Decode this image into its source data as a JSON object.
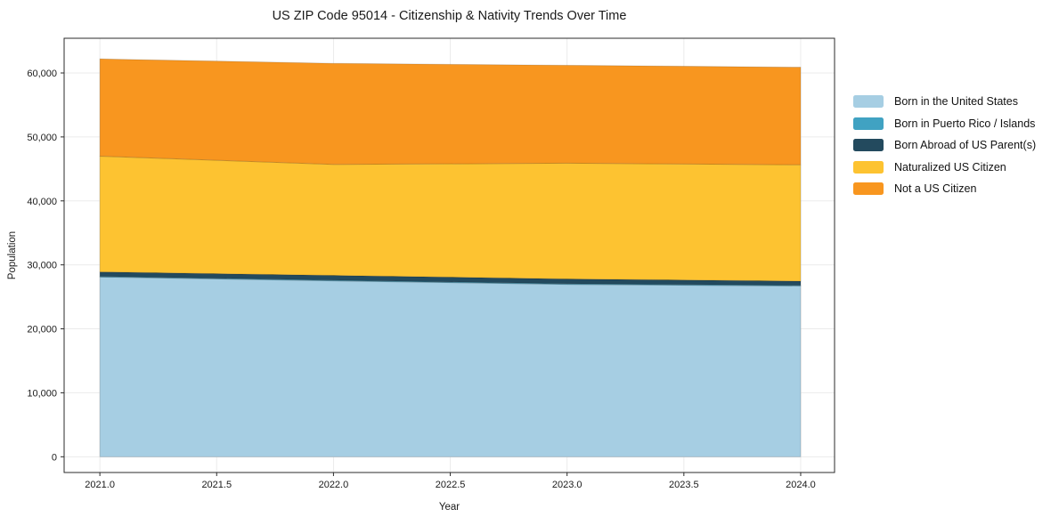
{
  "page": {
    "background": "#ffffff"
  },
  "chart_data": {
    "type": "area",
    "stacked": true,
    "title": "US ZIP Code 95014 - Citizenship & Nativity Trends Over Time",
    "xlabel": "Year",
    "ylabel": "Population",
    "x": [
      2021,
      2022,
      2023,
      2024
    ],
    "series": [
      {
        "name": "Born in the United States",
        "color": "#a6cee3",
        "values": [
          28100,
          27500,
          26950,
          26700
        ]
      },
      {
        "name": "Born in Puerto Rico / Islands",
        "color": "#40a2c2",
        "values": [
          100,
          100,
          100,
          100
        ]
      },
      {
        "name": "Born Abroad of US Parent(s)",
        "color": "#234a5e",
        "values": [
          700,
          750,
          750,
          650
        ]
      },
      {
        "name": "Naturalized US Citizen",
        "color": "#fdc331",
        "values": [
          18100,
          17350,
          18100,
          18200
        ]
      },
      {
        "name": "Not a US Citizen",
        "color": "#f8961f",
        "values": [
          15200,
          15800,
          15300,
          15250
        ]
      }
    ],
    "totals_by_year": [
      62200,
      61500,
      61200,
      60900
    ],
    "xticks": [
      2021.0,
      2021.5,
      2022.0,
      2022.5,
      2023.0,
      2023.5,
      2024.0
    ],
    "xtick_labels": [
      "2021.0",
      "2021.5",
      "2022.0",
      "2022.5",
      "2023.0",
      "2023.5",
      "2024.0"
    ],
    "yticks": [
      0,
      10000,
      20000,
      30000,
      40000,
      50000,
      60000
    ],
    "ytick_labels": [
      "0",
      "10,000",
      "20,000",
      "30,000",
      "40,000",
      "50,000",
      "60,000"
    ],
    "xlim": [
      2020.847,
      2024.145
    ],
    "ylim": [
      -2460,
      65425
    ],
    "grid": true,
    "grid_color": "#ebebeb",
    "spine_color": "#2b2b2b",
    "tick_label_color": "#1a1a1a",
    "legend_position": "outside-right-top"
  }
}
